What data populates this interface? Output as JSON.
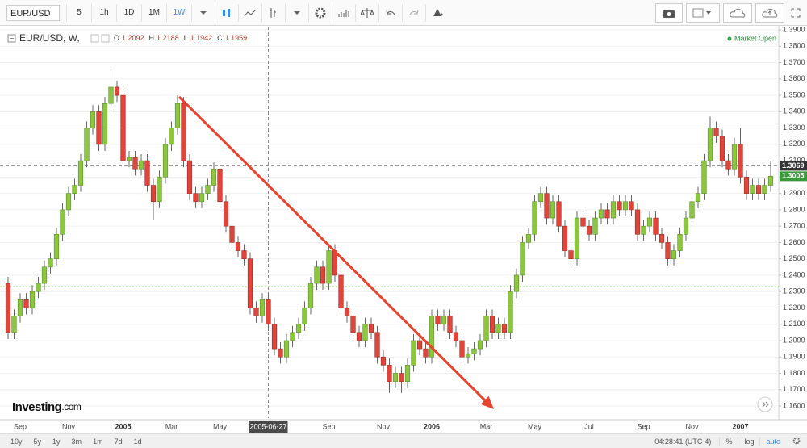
{
  "toolbar": {
    "symbol": "EUR/USD",
    "intervals": [
      "5",
      "1h",
      "1D",
      "1M",
      "1W"
    ]
  },
  "header": {
    "title": "EUR/USD, W,",
    "quote": [
      {
        "label": "O",
        "value": "1.2092"
      },
      {
        "label": "H",
        "value": "1.2188"
      },
      {
        "label": "L",
        "value": "1.1942"
      },
      {
        "label": "C",
        "value": "1.1959"
      }
    ],
    "status": "Market Open"
  },
  "logo": {
    "name": "Investing",
    "suffix": ".com"
  },
  "footer": {
    "ranges": [
      "10y",
      "5y",
      "1y",
      "3m",
      "1m",
      "7d",
      "1d"
    ],
    "time": "04:28:41 (UTC-4)",
    "options": [
      "%",
      "log",
      "auto"
    ]
  },
  "chart_data": {
    "type": "candlestick",
    "up_color": "#8cc63f",
    "down_color": "#e0453b",
    "grid": true,
    "ylim": [
      1.1526,
      1.392
    ],
    "yticks": [
      {
        "value": 1.16,
        "label": "1.1600"
      },
      {
        "value": 1.17,
        "label": "1.1700"
      },
      {
        "value": 1.18,
        "label": "1.1800"
      },
      {
        "value": 1.19,
        "label": "1.1900"
      },
      {
        "value": 1.2,
        "label": "1.2000"
      },
      {
        "value": 1.21,
        "label": "1.2100"
      },
      {
        "value": 1.22,
        "label": "1.2200"
      },
      {
        "value": 1.23,
        "label": "1.2300"
      },
      {
        "value": 1.24,
        "label": "1.2400"
      },
      {
        "value": 1.25,
        "label": "1.2500"
      },
      {
        "value": 1.26,
        "label": "1.2600"
      },
      {
        "value": 1.27,
        "label": "1.2700"
      },
      {
        "value": 1.28,
        "label": "1.2800"
      },
      {
        "value": 1.29,
        "label": "1.2900"
      },
      {
        "value": 1.3,
        "label": "1.3000"
      },
      {
        "value": 1.31,
        "label": "1.3100"
      },
      {
        "value": 1.32,
        "label": "1.3200"
      },
      {
        "value": 1.33,
        "label": "1.3300"
      },
      {
        "value": 1.34,
        "label": "1.3400"
      },
      {
        "value": 1.35,
        "label": "1.3500"
      },
      {
        "value": 1.36,
        "label": "1.3600"
      },
      {
        "value": 1.37,
        "label": "1.3700"
      },
      {
        "value": 1.38,
        "label": "1.3800"
      },
      {
        "value": 1.39,
        "label": "1.3900"
      }
    ],
    "reference_line": {
      "value": 1.233,
      "color": "#7ccd4a"
    },
    "crosshair": {
      "x": "2005-06-27",
      "y": 1.3069
    },
    "categories": [
      null,
      null,
      "Sep",
      null,
      null,
      null,
      null,
      null,
      null,
      null,
      "Nov",
      null,
      null,
      null,
      null,
      null,
      null,
      null,
      null,
      "2005",
      null,
      null,
      null,
      null,
      null,
      null,
      null,
      "Mar",
      null,
      null,
      null,
      null,
      null,
      null,
      null,
      "May",
      null,
      null,
      null,
      null,
      null,
      null,
      null,
      "2005-06-27",
      null,
      null,
      null,
      null,
      null,
      null,
      null,
      null,
      null,
      "Sep",
      null,
      null,
      null,
      null,
      null,
      null,
      null,
      null,
      "Nov",
      null,
      null,
      null,
      null,
      null,
      null,
      null,
      "2006",
      null,
      null,
      null,
      null,
      null,
      null,
      null,
      null,
      "Mar",
      null,
      null,
      null,
      null,
      null,
      null,
      null,
      "May",
      null,
      null,
      null,
      null,
      null,
      null,
      null,
      null,
      "Jul",
      null,
      null,
      null,
      null,
      null,
      null,
      null,
      null,
      "Sep",
      null,
      null,
      null,
      null,
      null,
      null,
      null,
      "Nov",
      null,
      null,
      null,
      null,
      null,
      null,
      null,
      "2007",
      null,
      null,
      null,
      null,
      null
    ],
    "ohlc": [
      [
        1.235,
        1.239,
        1.201,
        1.205
      ],
      [
        1.205,
        1.219,
        1.201,
        1.215
      ],
      [
        1.215,
        1.229,
        1.211,
        1.225
      ],
      [
        1.225,
        1.229,
        1.216,
        1.22
      ],
      [
        1.22,
        1.234,
        1.216,
        1.23
      ],
      [
        1.23,
        1.239,
        1.226,
        1.235
      ],
      [
        1.235,
        1.249,
        1.231,
        1.245
      ],
      [
        1.245,
        1.254,
        1.241,
        1.25
      ],
      [
        1.25,
        1.269,
        1.246,
        1.265
      ],
      [
        1.265,
        1.284,
        1.261,
        1.28
      ],
      [
        1.28,
        1.294,
        1.276,
        1.29
      ],
      [
        1.29,
        1.299,
        1.286,
        1.295
      ],
      [
        1.295,
        1.314,
        1.291,
        1.31
      ],
      [
        1.31,
        1.334,
        1.306,
        1.33
      ],
      [
        1.33,
        1.344,
        1.326,
        1.34
      ],
      [
        1.34,
        1.344,
        1.316,
        1.32
      ],
      [
        1.32,
        1.349,
        1.316,
        1.345
      ],
      [
        1.345,
        1.366,
        1.341,
        1.355
      ],
      [
        1.355,
        1.359,
        1.346,
        1.35
      ],
      [
        1.35,
        1.354,
        1.306,
        1.31
      ],
      [
        1.31,
        1.316,
        1.306,
        1.312
      ],
      [
        1.312,
        1.316,
        1.301,
        1.305
      ],
      [
        1.305,
        1.314,
        1.301,
        1.31
      ],
      [
        1.31,
        1.314,
        1.291,
        1.295
      ],
      [
        1.295,
        1.299,
        1.274,
        1.285
      ],
      [
        1.285,
        1.304,
        1.281,
        1.3
      ],
      [
        1.3,
        1.324,
        1.296,
        1.32
      ],
      [
        1.32,
        1.334,
        1.316,
        1.33
      ],
      [
        1.33,
        1.35,
        1.326,
        1.345
      ],
      [
        1.345,
        1.349,
        1.306,
        1.31
      ],
      [
        1.31,
        1.314,
        1.286,
        1.29
      ],
      [
        1.29,
        1.294,
        1.281,
        1.285
      ],
      [
        1.285,
        1.294,
        1.281,
        1.29
      ],
      [
        1.29,
        1.299,
        1.286,
        1.295
      ],
      [
        1.295,
        1.309,
        1.291,
        1.305
      ],
      [
        1.305,
        1.309,
        1.281,
        1.285
      ],
      [
        1.285,
        1.289,
        1.266,
        1.27
      ],
      [
        1.27,
        1.274,
        1.256,
        1.26
      ],
      [
        1.26,
        1.264,
        1.251,
        1.255
      ],
      [
        1.255,
        1.259,
        1.246,
        1.25
      ],
      [
        1.25,
        1.254,
        1.216,
        1.22
      ],
      [
        1.22,
        1.224,
        1.211,
        1.215
      ],
      [
        1.215,
        1.229,
        1.211,
        1.225
      ],
      [
        1.225,
        1.229,
        1.206,
        1.21
      ],
      [
        1.21,
        1.214,
        1.191,
        1.195
      ],
      [
        1.195,
        1.199,
        1.186,
        1.19
      ],
      [
        1.19,
        1.204,
        1.186,
        1.2
      ],
      [
        1.2,
        1.209,
        1.196,
        1.205
      ],
      [
        1.205,
        1.214,
        1.201,
        1.21
      ],
      [
        1.21,
        1.224,
        1.206,
        1.22
      ],
      [
        1.22,
        1.239,
        1.216,
        1.235
      ],
      [
        1.235,
        1.249,
        1.231,
        1.245
      ],
      [
        1.245,
        1.249,
        1.231,
        1.235
      ],
      [
        1.235,
        1.259,
        1.231,
        1.255
      ],
      [
        1.255,
        1.259,
        1.236,
        1.24
      ],
      [
        1.24,
        1.244,
        1.216,
        1.22
      ],
      [
        1.22,
        1.224,
        1.211,
        1.215
      ],
      [
        1.215,
        1.219,
        1.201,
        1.205
      ],
      [
        1.205,
        1.209,
        1.196,
        1.2
      ],
      [
        1.2,
        1.214,
        1.196,
        1.21
      ],
      [
        1.21,
        1.214,
        1.201,
        1.205
      ],
      [
        1.205,
        1.209,
        1.186,
        1.19
      ],
      [
        1.19,
        1.194,
        1.181,
        1.185
      ],
      [
        1.185,
        1.189,
        1.168,
        1.175
      ],
      [
        1.175,
        1.184,
        1.171,
        1.18
      ],
      [
        1.18,
        1.184,
        1.168,
        1.175
      ],
      [
        1.175,
        1.189,
        1.171,
        1.185
      ],
      [
        1.185,
        1.204,
        1.181,
        1.2
      ],
      [
        1.2,
        1.204,
        1.191,
        1.195
      ],
      [
        1.195,
        1.199,
        1.186,
        1.19
      ],
      [
        1.19,
        1.219,
        1.186,
        1.215
      ],
      [
        1.215,
        1.219,
        1.206,
        1.21
      ],
      [
        1.21,
        1.219,
        1.206,
        1.215
      ],
      [
        1.215,
        1.219,
        1.201,
        1.205
      ],
      [
        1.205,
        1.209,
        1.196,
        1.2
      ],
      [
        1.2,
        1.204,
        1.186,
        1.19
      ],
      [
        1.19,
        1.196,
        1.186,
        1.192
      ],
      [
        1.192,
        1.199,
        1.188,
        1.195
      ],
      [
        1.195,
        1.204,
        1.191,
        1.2
      ],
      [
        1.2,
        1.219,
        1.196,
        1.215
      ],
      [
        1.215,
        1.219,
        1.201,
        1.205
      ],
      [
        1.205,
        1.214,
        1.201,
        1.21
      ],
      [
        1.21,
        1.214,
        1.201,
        1.205
      ],
      [
        1.205,
        1.234,
        1.201,
        1.23
      ],
      [
        1.23,
        1.244,
        1.226,
        1.24
      ],
      [
        1.24,
        1.264,
        1.236,
        1.26
      ],
      [
        1.26,
        1.269,
        1.256,
        1.265
      ],
      [
        1.265,
        1.289,
        1.261,
        1.285
      ],
      [
        1.285,
        1.294,
        1.281,
        1.29
      ],
      [
        1.29,
        1.294,
        1.271,
        1.275
      ],
      [
        1.275,
        1.289,
        1.271,
        1.285
      ],
      [
        1.285,
        1.289,
        1.266,
        1.27
      ],
      [
        1.27,
        1.274,
        1.251,
        1.255
      ],
      [
        1.255,
        1.259,
        1.246,
        1.25
      ],
      [
        1.25,
        1.279,
        1.246,
        1.275
      ],
      [
        1.275,
        1.279,
        1.266,
        1.27
      ],
      [
        1.27,
        1.274,
        1.261,
        1.265
      ],
      [
        1.265,
        1.279,
        1.261,
        1.275
      ],
      [
        1.275,
        1.284,
        1.271,
        1.28
      ],
      [
        1.28,
        1.284,
        1.271,
        1.275
      ],
      [
        1.275,
        1.289,
        1.271,
        1.285
      ],
      [
        1.285,
        1.289,
        1.276,
        1.28
      ],
      [
        1.28,
        1.289,
        1.276,
        1.285
      ],
      [
        1.285,
        1.289,
        1.276,
        1.28
      ],
      [
        1.28,
        1.284,
        1.261,
        1.265
      ],
      [
        1.265,
        1.274,
        1.261,
        1.27
      ],
      [
        1.27,
        1.279,
        1.266,
        1.275
      ],
      [
        1.275,
        1.279,
        1.261,
        1.265
      ],
      [
        1.265,
        1.269,
        1.256,
        1.26
      ],
      [
        1.26,
        1.264,
        1.246,
        1.25
      ],
      [
        1.25,
        1.259,
        1.246,
        1.255
      ],
      [
        1.255,
        1.269,
        1.251,
        1.265
      ],
      [
        1.265,
        1.279,
        1.261,
        1.275
      ],
      [
        1.275,
        1.289,
        1.271,
        1.285
      ],
      [
        1.285,
        1.294,
        1.281,
        1.29
      ],
      [
        1.29,
        1.314,
        1.286,
        1.31
      ],
      [
        1.31,
        1.337,
        1.306,
        1.33
      ],
      [
        1.33,
        1.334,
        1.321,
        1.325
      ],
      [
        1.325,
        1.329,
        1.306,
        1.31
      ],
      [
        1.31,
        1.314,
        1.301,
        1.305
      ],
      [
        1.305,
        1.324,
        1.301,
        1.32
      ],
      [
        1.32,
        1.33,
        1.296,
        1.3
      ],
      [
        1.3,
        1.304,
        1.286,
        1.29
      ],
      [
        1.29,
        1.299,
        1.286,
        1.295
      ],
      [
        1.295,
        1.299,
        1.286,
        1.29
      ],
      [
        1.29,
        1.299,
        1.286,
        1.295
      ],
      [
        1.295,
        1.31,
        1.291,
        1.3005
      ]
    ]
  }
}
